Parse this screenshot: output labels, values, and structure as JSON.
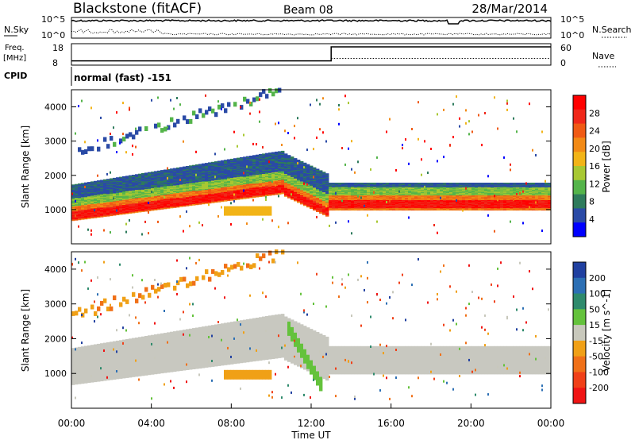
{
  "header": {
    "station": "Blackstone (fitACF)",
    "beam": "Beam 08",
    "date": "28/Mar/2014"
  },
  "status_panels": {
    "nsky_label": "N.Sky",
    "nsearch_label": "N.Search",
    "nsky_ticks": [
      "10^5",
      "10^0"
    ],
    "freq_label": [
      "Freq.",
      "[MHz]"
    ],
    "freq_ticks": [
      "18",
      "8"
    ],
    "nave_label": "Nave",
    "nave_ticks": [
      "60",
      "0"
    ],
    "cpid_label": "CPID",
    "cpid_text": "normal (fast) -151"
  },
  "colors": {
    "power_scale": [
      "#0000ff",
      "#2a4aa6",
      "#2e7b5c",
      "#54b44a",
      "#a8c832",
      "#f2b417",
      "#f28a16",
      "#f05a14",
      "#f0281a",
      "#ff0000"
    ],
    "velocity_scale": [
      "#2040a0",
      "#2c6fb4",
      "#2e8a6c",
      "#64c23c",
      "#c8c8bc",
      "#f0a016",
      "#f07018",
      "#f04018",
      "#f01414"
    ],
    "ground_scatter": "#c8c8c0"
  },
  "chart_data": [
    {
      "type": "line",
      "title": "Blackstone (fitACF)  Beam 08  28/Mar/2014",
      "panel": "noise",
      "ylabel": "N.Sky",
      "y2label": "N.Search",
      "yscale": "log",
      "ylim": [
        1,
        100000
      ],
      "x": [
        "00:00",
        "04:00",
        "08:00",
        "12:00",
        "16:00",
        "20:00",
        "00:00"
      ],
      "series": [
        {
          "name": "N.Sky",
          "approx_value": "~10^5 throughout, small dip near 19:00"
        },
        {
          "name": "N.Search",
          "approx_value": "~10^0 scattered, enhanced near 01:00-04:30"
        }
      ]
    },
    {
      "type": "line",
      "panel": "frequency",
      "ylabel": "Freq. [MHz]",
      "y2label": "Nave",
      "ylim": [
        8,
        18
      ],
      "y2lim": [
        0,
        60
      ],
      "series": [
        {
          "name": "Freq.",
          "x": [
            "00:00",
            "13:00",
            "13:00",
            "24:00"
          ],
          "values": [
            10,
            10,
            16.5,
            16.5
          ]
        },
        {
          "name": "Nave",
          "x": [
            "13:00",
            "24:00"
          ],
          "values": [
            30,
            30
          ]
        }
      ]
    },
    {
      "type": "heatmap",
      "panel": "power",
      "ylabel": "Slant Range [km]",
      "colorbar_label": "Power [dB]",
      "colorbar_ticks": [
        "28",
        "24",
        "20",
        "16",
        "12",
        "8",
        "4"
      ],
      "ylim": [
        0,
        4500
      ],
      "yticks": [
        "1000",
        "2000",
        "3000",
        "4000"
      ]
    },
    {
      "type": "heatmap",
      "panel": "velocity",
      "ylabel": "Slant Range [km]",
      "xlabel": "Time UT",
      "colorbar_label": "Velocity [m s^-1]",
      "colorbar_ticks": [
        "200",
        "100",
        "50",
        "15",
        "-15",
        "-50",
        "-100",
        "-200"
      ],
      "ylim": [
        0,
        4500
      ],
      "yticks": [
        "1000",
        "2000",
        "3000",
        "4000"
      ],
      "xticks": [
        "00:00",
        "04:00",
        "08:00",
        "12:00",
        "16:00",
        "20:00",
        "00:00"
      ]
    }
  ]
}
